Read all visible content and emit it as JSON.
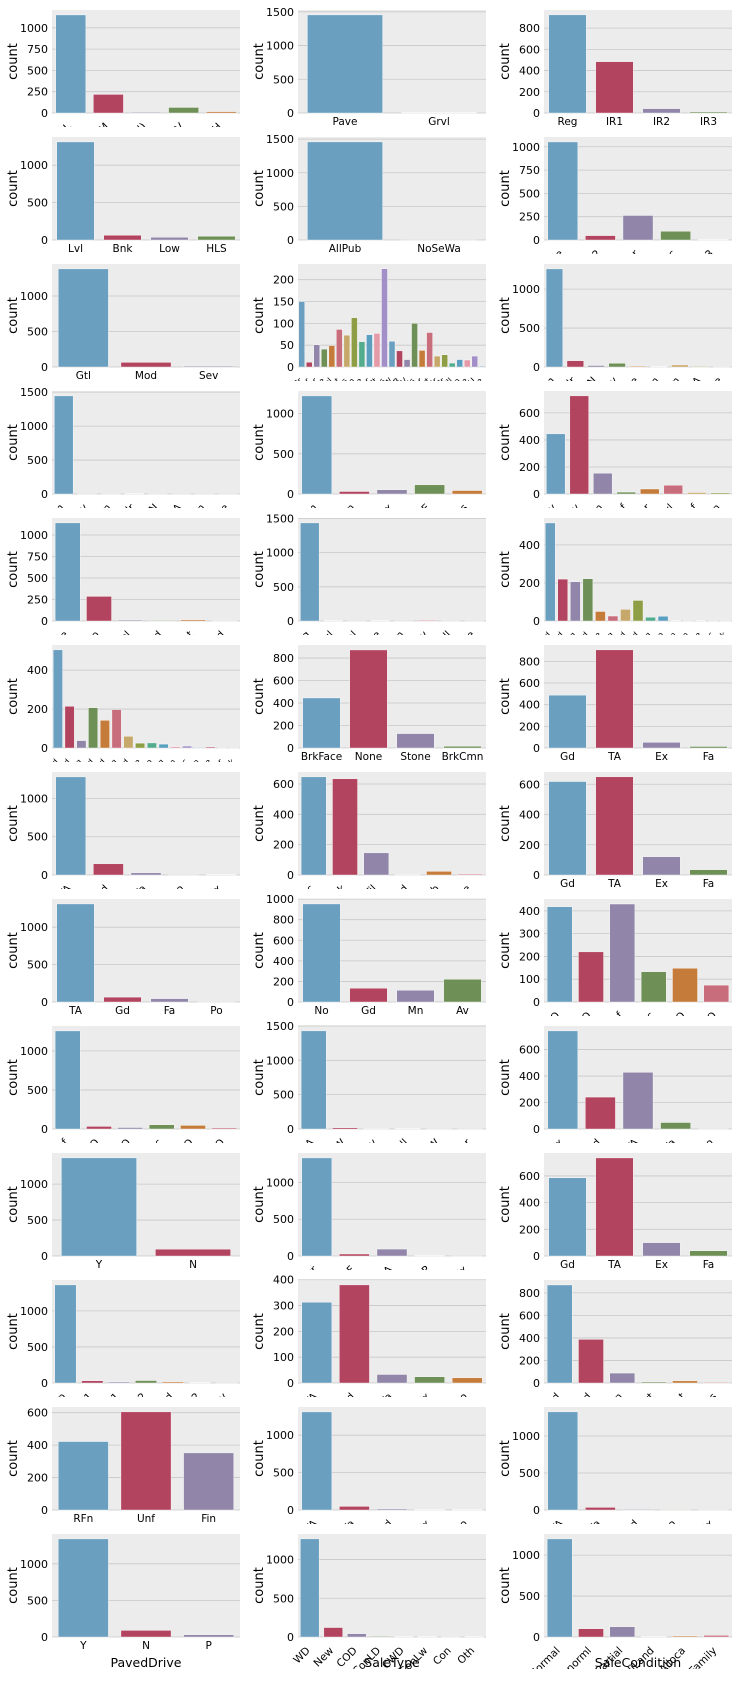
{
  "palette": [
    "#6a9fbf",
    "#b3445f",
    "#9186a9",
    "#6e9056",
    "#c57c3a",
    "#c86d7c",
    "#c6a86a",
    "#8d9e45",
    "#53ad8d",
    "#5a9fc0",
    "#e49aa8",
    "#a28fc8"
  ],
  "colors": {
    "panel_bg": "#ececec",
    "grid": "#c8c8c8",
    "text": "#000000"
  },
  "chart_data": [
    {
      "type": "bar",
      "ylabel": "count",
      "xlabel": "",
      "categories": [
        "RL",
        "RM",
        "(all)",
        "FV",
        "RH"
      ],
      "values": [
        1151,
        218,
        10,
        65,
        16
      ],
      "ylim": [
        0,
        1209
      ],
      "yticks": [
        0,
        250,
        500,
        750,
        1000
      ]
    },
    {
      "type": "bar",
      "ylabel": "count",
      "xlabel": "",
      "categories": [
        "Pave",
        "Grvl"
      ],
      "values": [
        1454,
        6
      ],
      "ylim": [
        0,
        1527
      ],
      "yticks": [
        0,
        500,
        1000,
        1500
      ]
    },
    {
      "type": "bar",
      "ylabel": "count",
      "xlabel": "",
      "categories": [
        "Reg",
        "IR1",
        "IR2",
        "IR3"
      ],
      "values": [
        925,
        484,
        41,
        10
      ],
      "ylim": [
        0,
        971
      ],
      "yticks": [
        0,
        200,
        400,
        600,
        800
      ]
    },
    {
      "type": "bar",
      "ylabel": "count",
      "xlabel": "",
      "categories": [
        "Lvl",
        "Bnk",
        "Low",
        "HLS"
      ],
      "values": [
        1311,
        63,
        36,
        50
      ],
      "ylim": [
        0,
        1377
      ],
      "yticks": [
        0,
        500,
        1000
      ]
    },
    {
      "type": "bar",
      "ylabel": "count",
      "xlabel": "",
      "categories": [
        "AllPub",
        "NoSeWa"
      ],
      "values": [
        1459,
        1
      ],
      "ylim": [
        0,
        1532
      ],
      "yticks": [
        0,
        500,
        1000,
        1500
      ]
    },
    {
      "type": "bar",
      "ylabel": "count",
      "xlabel": "",
      "categories": [
        "Inside",
        "FR2",
        "Corner",
        "CulDSac",
        "FR3"
      ],
      "values": [
        1052,
        47,
        263,
        94,
        4
      ],
      "ylim": [
        0,
        1105
      ],
      "yticks": [
        0,
        250,
        500,
        750,
        1000
      ]
    },
    {
      "type": "bar",
      "ylabel": "count",
      "xlabel": "",
      "categories": [
        "Gtl",
        "Mod",
        "Sev"
      ],
      "values": [
        1382,
        65,
        13
      ],
      "ylim": [
        0,
        1451
      ],
      "yticks": [
        0,
        500,
        1000
      ]
    },
    {
      "type": "bar",
      "ylabel": "count",
      "xlabel": "",
      "categories": [
        "CollgCr",
        "Veenker",
        "Crawfor",
        "NoRidge",
        "Mitchel",
        "Somerst",
        "NWAmes",
        "OldTown",
        "BrkSide",
        "Sawyer",
        "NridgHt",
        "NAmes",
        "SawyerW",
        "IDOTRR",
        "MeadowV",
        "Edwards",
        "Timber",
        "Gilbert",
        "StoneBr",
        "ClearCr",
        "NPkVill",
        "Blmngtn",
        "BrDale",
        "SWISU",
        "Blueste"
      ],
      "values": [
        150,
        11,
        51,
        41,
        49,
        86,
        73,
        113,
        58,
        74,
        77,
        225,
        59,
        37,
        17,
        100,
        38,
        79,
        25,
        28,
        9,
        17,
        16,
        25,
        2
      ],
      "ylim": [
        0,
        236
      ],
      "yticks": [
        0,
        50,
        100,
        150,
        200
      ]
    },
    {
      "type": "bar",
      "ylabel": "count",
      "xlabel": "",
      "categories": [
        "Norm",
        "Feedr",
        "PosN",
        "Artery",
        "RRAe",
        "RRNn",
        "RRAn",
        "PosA",
        "RRNe"
      ],
      "values": [
        1260,
        81,
        19,
        48,
        11,
        5,
        26,
        8,
        2
      ],
      "ylim": [
        0,
        1323
      ],
      "yticks": [
        0,
        500,
        1000
      ]
    },
    {
      "type": "bar",
      "ylabel": "count",
      "xlabel": "",
      "categories": [
        "Norm",
        "Artery",
        "RRNn",
        "Feedr",
        "PosN",
        "PosA",
        "RRAn",
        "RRAe"
      ],
      "values": [
        1445,
        2,
        2,
        6,
        2,
        1,
        1,
        1
      ],
      "ylim": [
        0,
        1517
      ],
      "yticks": [
        0,
        500,
        1000,
        1500
      ]
    },
    {
      "type": "bar",
      "ylabel": "count",
      "xlabel": "",
      "categories": [
        "1Fam",
        "2fmCon",
        "Duplex",
        "TwnhsE",
        "Twnhs"
      ],
      "values": [
        1220,
        31,
        52,
        114,
        43
      ],
      "ylim": [
        0,
        1281
      ],
      "yticks": [
        0,
        500,
        1000
      ]
    },
    {
      "type": "bar",
      "ylabel": "count",
      "xlabel": "",
      "categories": [
        "2Story",
        "1Story",
        "1.5Fin",
        "1.5Unf",
        "SFoyer",
        "SLvl",
        "2.5Unf",
        "2.5Fin"
      ],
      "values": [
        445,
        726,
        154,
        14,
        37,
        65,
        11,
        8
      ],
      "ylim": [
        0,
        762
      ],
      "yticks": [
        0,
        200,
        400,
        600
      ]
    },
    {
      "type": "bar",
      "ylabel": "count",
      "xlabel": "",
      "categories": [
        "Gable",
        "Hip",
        "Gambrel",
        "Mansard",
        "Flat",
        "Shed"
      ],
      "values": [
        1141,
        286,
        11,
        7,
        13,
        2
      ],
      "ylim": [
        0,
        1198
      ],
      "yticks": [
        0,
        250,
        500,
        750,
        1000
      ]
    },
    {
      "type": "bar",
      "ylabel": "count",
      "xlabel": "",
      "categories": [
        "CompShg",
        "WdShngl",
        "Metal",
        "WdShake",
        "Membran",
        "Tar&Grv",
        "Roll",
        "ClyTile"
      ],
      "values": [
        1434,
        6,
        1,
        5,
        1,
        11,
        1,
        1
      ],
      "ylim": [
        0,
        1506
      ],
      "yticks": [
        0,
        500,
        1000,
        1500
      ]
    },
    {
      "type": "bar",
      "ylabel": "count",
      "xlabel": "",
      "categories": [
        "VinylSd",
        "MetalSd",
        "Wd Sdng",
        "HdBoard",
        "BrkFace",
        "WdShing",
        "CemntBd",
        "Plywood",
        "AsbShng",
        "Stucco",
        "BrkComm",
        "AsphShn",
        "Stone",
        "ImStucc",
        "CBlock"
      ],
      "values": [
        515,
        220,
        206,
        222,
        50,
        26,
        61,
        108,
        20,
        25,
        2,
        1,
        2,
        1,
        1
      ],
      "ylim": [
        0,
        541
      ],
      "yticks": [
        0,
        200,
        400
      ]
    },
    {
      "type": "bar",
      "ylabel": "count",
      "xlabel": "",
      "categories": [
        "VinylSd",
        "MetalSd",
        "Wd Shng",
        "HdBoard",
        "Plywood",
        "Wd Sdng",
        "CmentBd",
        "BrkFace",
        "Stucco",
        "AsbShng",
        "Brk Cmn",
        "ImStucc",
        "AsphShn",
        "Stone",
        "Other",
        "CBlock"
      ],
      "values": [
        504,
        214,
        38,
        207,
        142,
        197,
        60,
        25,
        26,
        20,
        7,
        10,
        3,
        5,
        1,
        1
      ],
      "ylim": [
        0,
        529
      ],
      "yticks": [
        0,
        200,
        400
      ]
    },
    {
      "type": "bar",
      "ylabel": "count",
      "xlabel": "",
      "categories": [
        "BrkFace",
        "None",
        "Stone",
        "BrkCmn"
      ],
      "values": [
        445,
        872,
        128,
        15
      ],
      "ylim": [
        0,
        916
      ],
      "yticks": [
        0,
        200,
        400,
        600,
        800
      ]
    },
    {
      "type": "bar",
      "ylabel": "count",
      "xlabel": "",
      "categories": [
        "Gd",
        "TA",
        "Ex",
        "Fa"
      ],
      "values": [
        488,
        906,
        52,
        14
      ],
      "ylim": [
        0,
        951
      ],
      "yticks": [
        0,
        200,
        400,
        600,
        800
      ]
    },
    {
      "type": "bar",
      "ylabel": "count",
      "xlabel": "",
      "categories": [
        "TA",
        "Gd",
        "Fa",
        "Po",
        "Ex"
      ],
      "values": [
        1282,
        146,
        28,
        1,
        3
      ],
      "ylim": [
        0,
        1346
      ],
      "yticks": [
        0,
        500,
        1000
      ]
    },
    {
      "type": "bar",
      "ylabel": "count",
      "xlabel": "",
      "categories": [
        "PConc",
        "CBlock",
        "BrkTil",
        "Wood",
        "Slab",
        "Stone"
      ],
      "values": [
        647,
        634,
        146,
        3,
        24,
        6
      ],
      "ylim": [
        0,
        679
      ],
      "yticks": [
        0,
        200,
        400,
        600
      ]
    },
    {
      "type": "bar",
      "ylabel": "count",
      "xlabel": "",
      "categories": [
        "Gd",
        "TA",
        "Ex",
        "Fa"
      ],
      "values": [
        618,
        649,
        121,
        35
      ],
      "ylim": [
        0,
        681
      ],
      "yticks": [
        0,
        200,
        400,
        600
      ]
    },
    {
      "type": "bar",
      "ylabel": "count",
      "xlabel": "",
      "categories": [
        "TA",
        "Gd",
        "Fa",
        "Po"
      ],
      "values": [
        1311,
        65,
        45,
        2
      ],
      "ylim": [
        0,
        1377
      ],
      "yticks": [
        0,
        500,
        1000
      ]
    },
    {
      "type": "bar",
      "ylabel": "count",
      "xlabel": "",
      "categories": [
        "No",
        "Gd",
        "Mn",
        "Av"
      ],
      "values": [
        953,
        134,
        114,
        221
      ],
      "ylim": [
        0,
        1001
      ],
      "yticks": [
        0,
        200,
        400,
        600,
        800,
        1000
      ]
    },
    {
      "type": "bar",
      "ylabel": "count",
      "xlabel": "",
      "categories": [
        "GLQ",
        "ALQ",
        "Unf",
        "Rec",
        "BLQ",
        "LwQ"
      ],
      "values": [
        418,
        220,
        430,
        133,
        148,
        74
      ],
      "ylim": [
        0,
        452
      ],
      "yticks": [
        0,
        100,
        200,
        300,
        400
      ]
    },
    {
      "type": "bar",
      "ylabel": "count",
      "xlabel": "",
      "categories": [
        "Unf",
        "BLQ",
        "ALQ",
        "Rec",
        "LwQ",
        "GLQ"
      ],
      "values": [
        1256,
        33,
        19,
        54,
        46,
        14
      ],
      "ylim": [
        0,
        1319
      ],
      "yticks": [
        0,
        500,
        1000
      ]
    },
    {
      "type": "bar",
      "ylabel": "count",
      "xlabel": "",
      "categories": [
        "GasA",
        "GasW",
        "Grav",
        "Wall",
        "OthW",
        "Floor"
      ],
      "values": [
        1428,
        18,
        7,
        4,
        2,
        1
      ],
      "ylim": [
        0,
        1499
      ],
      "yticks": [
        0,
        500,
        1000,
        1500
      ]
    },
    {
      "type": "bar",
      "ylabel": "count",
      "xlabel": "",
      "categories": [
        "Ex",
        "Gd",
        "TA",
        "Fa",
        "Po"
      ],
      "values": [
        741,
        241,
        428,
        49,
        1
      ],
      "ylim": [
        0,
        778
      ],
      "yticks": [
        0,
        200,
        400,
        600
      ]
    },
    {
      "type": "bar",
      "ylabel": "count",
      "xlabel": "",
      "categories": [
        "Y",
        "N"
      ],
      "values": [
        1365,
        95
      ],
      "ylim": [
        0,
        1433
      ],
      "yticks": [
        0,
        500,
        1000
      ]
    },
    {
      "type": "bar",
      "ylabel": "count",
      "xlabel": "",
      "categories": [
        "SBrkr",
        "FuseF",
        "FuseA",
        "FuseP",
        "Mix"
      ],
      "values": [
        1334,
        27,
        94,
        3,
        1
      ],
      "ylim": [
        0,
        1401
      ],
      "yticks": [
        0,
        500,
        1000
      ]
    },
    {
      "type": "bar",
      "ylabel": "count",
      "xlabel": "",
      "categories": [
        "Gd",
        "TA",
        "Ex",
        "Fa"
      ],
      "values": [
        586,
        735,
        100,
        39
      ],
      "ylim": [
        0,
        772
      ],
      "yticks": [
        0,
        200,
        400,
        600
      ]
    },
    {
      "type": "bar",
      "ylabel": "count",
      "xlabel": "",
      "categories": [
        "Typ",
        "Min1",
        "Maj1",
        "Min2",
        "Mod",
        "Maj2",
        "Sev"
      ],
      "values": [
        1360,
        31,
        14,
        34,
        15,
        5,
        1
      ],
      "ylim": [
        0,
        1428
      ],
      "yticks": [
        0,
        500,
        1000
      ]
    },
    {
      "type": "bar",
      "ylabel": "count",
      "xlabel": "",
      "categories": [
        "TA",
        "Gd",
        "Fa",
        "Ex",
        "Po"
      ],
      "values": [
        313,
        380,
        33,
        24,
        20
      ],
      "ylim": [
        0,
        399
      ],
      "yticks": [
        0,
        100,
        200,
        300,
        400
      ]
    },
    {
      "type": "bar",
      "ylabel": "count",
      "xlabel": "",
      "categories": [
        "Attchd",
        "Detchd",
        "BuiltIn",
        "CarPort",
        "Basment",
        "2Types"
      ],
      "values": [
        870,
        387,
        88,
        9,
        19,
        6
      ],
      "ylim": [
        0,
        914
      ],
      "yticks": [
        0,
        200,
        400,
        600,
        800
      ]
    },
    {
      "type": "bar",
      "ylabel": "count",
      "xlabel": "",
      "categories": [
        "RFn",
        "Unf",
        "Fin"
      ],
      "values": [
        422,
        605,
        352
      ],
      "ylim": [
        0,
        635
      ],
      "yticks": [
        0,
        200,
        400,
        600
      ]
    },
    {
      "type": "bar",
      "ylabel": "count",
      "xlabel": "",
      "categories": [
        "TA",
        "Fa",
        "Gd",
        "Ex",
        "Po"
      ],
      "values": [
        1311,
        48,
        14,
        3,
        3
      ],
      "ylim": [
        0,
        1377
      ],
      "yticks": [
        0,
        500,
        1000
      ]
    },
    {
      "type": "bar",
      "ylabel": "count",
      "xlabel": "",
      "categories": [
        "TA",
        "Fa",
        "Gd",
        "Po",
        "Ex"
      ],
      "values": [
        1326,
        35,
        9,
        7,
        2
      ],
      "ylim": [
        0,
        1392
      ],
      "yticks": [
        0,
        500,
        1000
      ]
    },
    {
      "type": "bar",
      "ylabel": "count",
      "xlabel": "PavedDrive",
      "categories": [
        "Y",
        "N",
        "P"
      ],
      "values": [
        1340,
        90,
        30
      ],
      "ylim": [
        0,
        1407
      ],
      "yticks": [
        0,
        500,
        1000
      ]
    },
    {
      "type": "bar",
      "ylabel": "count",
      "xlabel": "SaleType",
      "categories": [
        "WD",
        "New",
        "COD",
        "ConLD",
        "CWD",
        "ConLw",
        "Con",
        "Oth"
      ],
      "values": [
        1267,
        122,
        43,
        9,
        4,
        5,
        2,
        3
      ],
      "ylim": [
        0,
        1330
      ],
      "yticks": [
        0,
        500,
        1000
      ]
    },
    {
      "type": "bar",
      "ylabel": "count",
      "xlabel": "SaleCondition",
      "categories": [
        "Normal",
        "Abnorml",
        "Partial",
        "AdjLand",
        "Alloca",
        "Family"
      ],
      "values": [
        1198,
        101,
        125,
        4,
        12,
        20
      ],
      "ylim": [
        0,
        1258
      ],
      "yticks": [
        0,
        500,
        1000
      ]
    }
  ]
}
